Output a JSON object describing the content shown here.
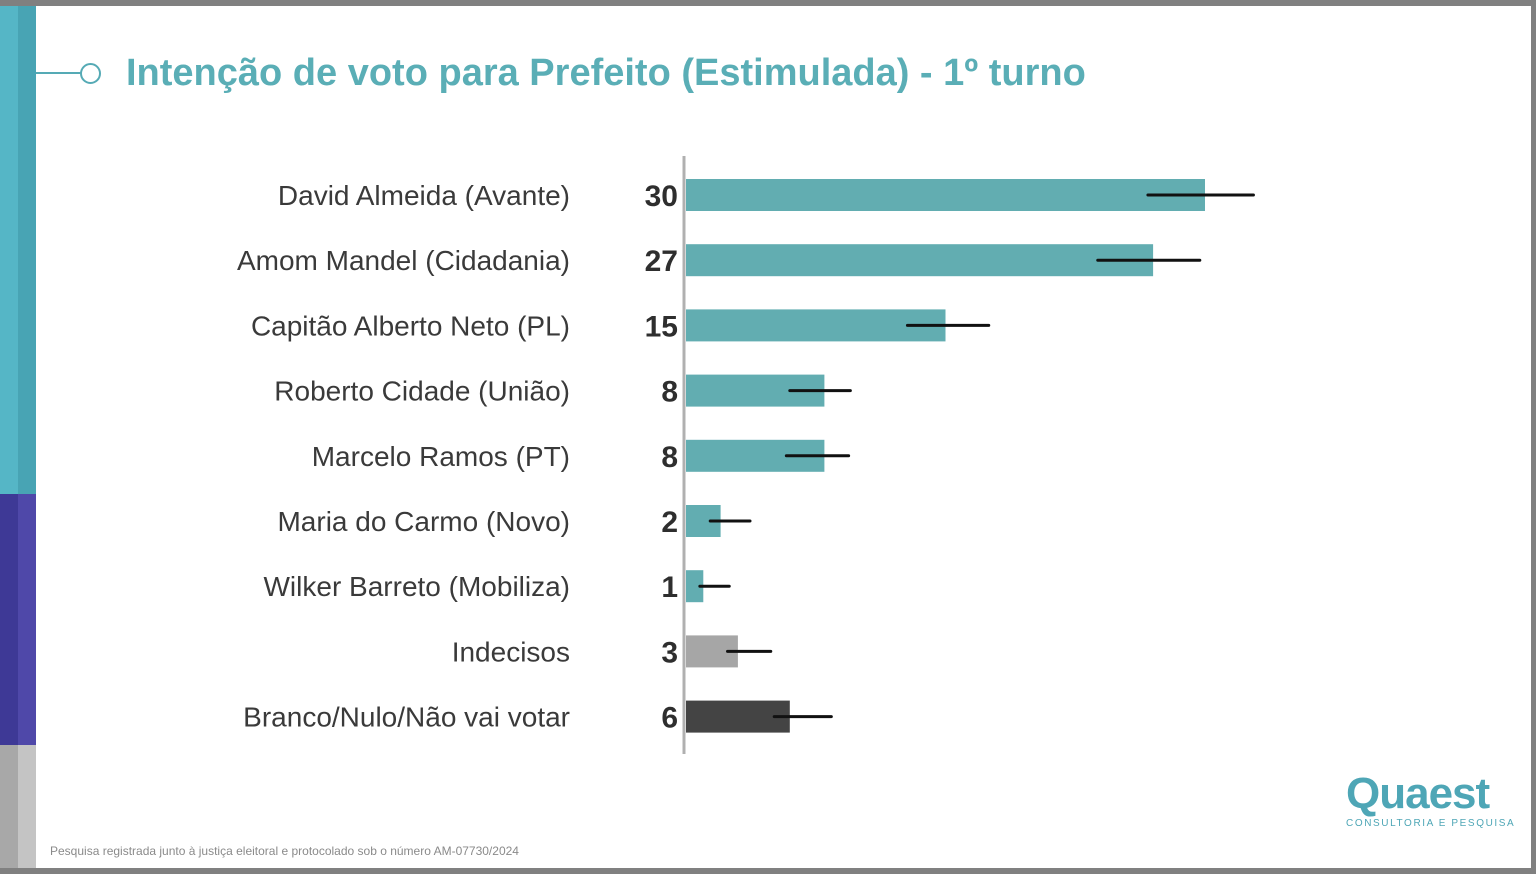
{
  "title": "Intenção de voto para Prefeito (Estimulada) - 1º turno",
  "footnote": "Pesquisa registrada junto à justiça eleitoral e protocolado sob o número AM-07730/2024",
  "logo": {
    "name": "Quaest",
    "tagline": "CONSULTORIA E PESQUISA"
  },
  "colors": {
    "accent": "#5aaeb6",
    "candidate_bar": "#62adb1",
    "undecided_bar": "#a6a6a6",
    "blank_null_bar": "#444444",
    "error_bar": "#111111",
    "stripe_teal": "#55b6c6",
    "stripe_purple": "#3e3996",
    "stripe_gray": "#a8a8a8"
  },
  "chart_data": {
    "type": "bar",
    "orientation": "horizontal",
    "title": "Intenção de voto para Prefeito (Estimulada) - 1º turno",
    "xlabel": "",
    "ylabel": "",
    "grid": false,
    "legend": "none",
    "xlim": [
      0,
      40
    ],
    "categories": [
      "David Almeida (Avante)",
      "Amom Mandel (Cidadania)",
      "Capitão Alberto Neto (PL)",
      "Roberto Cidade (União)",
      "Marcelo Ramos (PT)",
      "Maria do Carmo (Novo)",
      "Wilker Barreto (Mobiliza)",
      "Indecisos",
      "Branco/Nulo/Não vai votar"
    ],
    "values": [
      30,
      27,
      15,
      8,
      8,
      2,
      1,
      3,
      6
    ],
    "value_labels": [
      "30",
      "27",
      "15",
      "8",
      "8",
      "2",
      "1",
      "3",
      "6"
    ],
    "error_bars": {
      "low": [
        26.7,
        23.8,
        12.8,
        6,
        5.8,
        1.4,
        0.8,
        2.4,
        5.1
      ],
      "high": [
        32.8,
        29.7,
        17.5,
        9.5,
        9.4,
        3.7,
        2.5,
        4.9,
        8.4
      ]
    },
    "bar_colors": [
      "#62adb1",
      "#62adb1",
      "#62adb1",
      "#62adb1",
      "#62adb1",
      "#62adb1",
      "#62adb1",
      "#a6a6a6",
      "#444444"
    ]
  }
}
